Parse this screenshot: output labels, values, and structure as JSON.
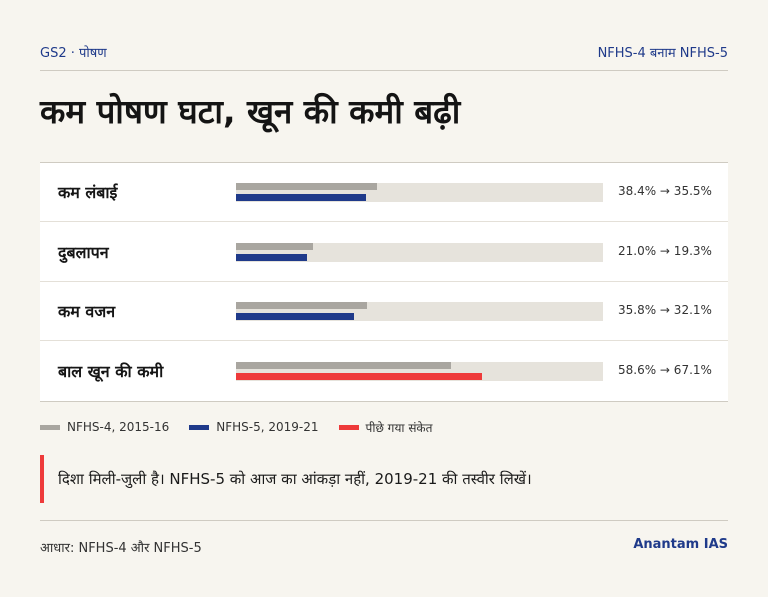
{
  "header": {
    "section": "GS2 · पोषण",
    "comparison": "NFHS-4 बनाम NFHS-5"
  },
  "title": "कम पोषण घटा, खून की कमी बढ़ी",
  "chart_data": {
    "type": "bar",
    "orientation": "horizontal",
    "categories": [
      "कम लंबाई",
      "दुबलापन",
      "कम वजन",
      "बाल खून की कमी"
    ],
    "series": [
      {
        "name": "NFHS-4, 2015-16",
        "values": [
          38.4,
          21.0,
          35.8,
          58.6
        ],
        "color": "#a9a6a0"
      },
      {
        "name": "NFHS-5, 2019-21",
        "values": [
          35.5,
          19.3,
          32.1,
          67.1
        ],
        "color": "#1f3a8a"
      }
    ],
    "value_labels": [
      "38.4% → 35.5%",
      "21.0% → 19.3%",
      "35.8% → 32.1%",
      "58.6% → 67.1%"
    ],
    "alert_flags": [
      false,
      false,
      false,
      true
    ],
    "alert_color": "#ee3a3a",
    "xlim": [
      0,
      100
    ],
    "grid": false
  },
  "legend": [
    {
      "label": "NFHS-4, 2015-16",
      "color": "#a9a6a0"
    },
    {
      "label": "NFHS-5, 2019-21",
      "color": "#1f3a8a"
    },
    {
      "label": "पीछे गया संकेत",
      "color": "#ee3a3a"
    }
  ],
  "callout": "दिशा मिली-जुली है। NFHS-5 को आज का आंकड़ा नहीं, 2019-21 की तस्वीर लिखें।",
  "footer": {
    "source": "आधार: NFHS-4 और NFHS-5",
    "brand": "Anantam IAS"
  }
}
